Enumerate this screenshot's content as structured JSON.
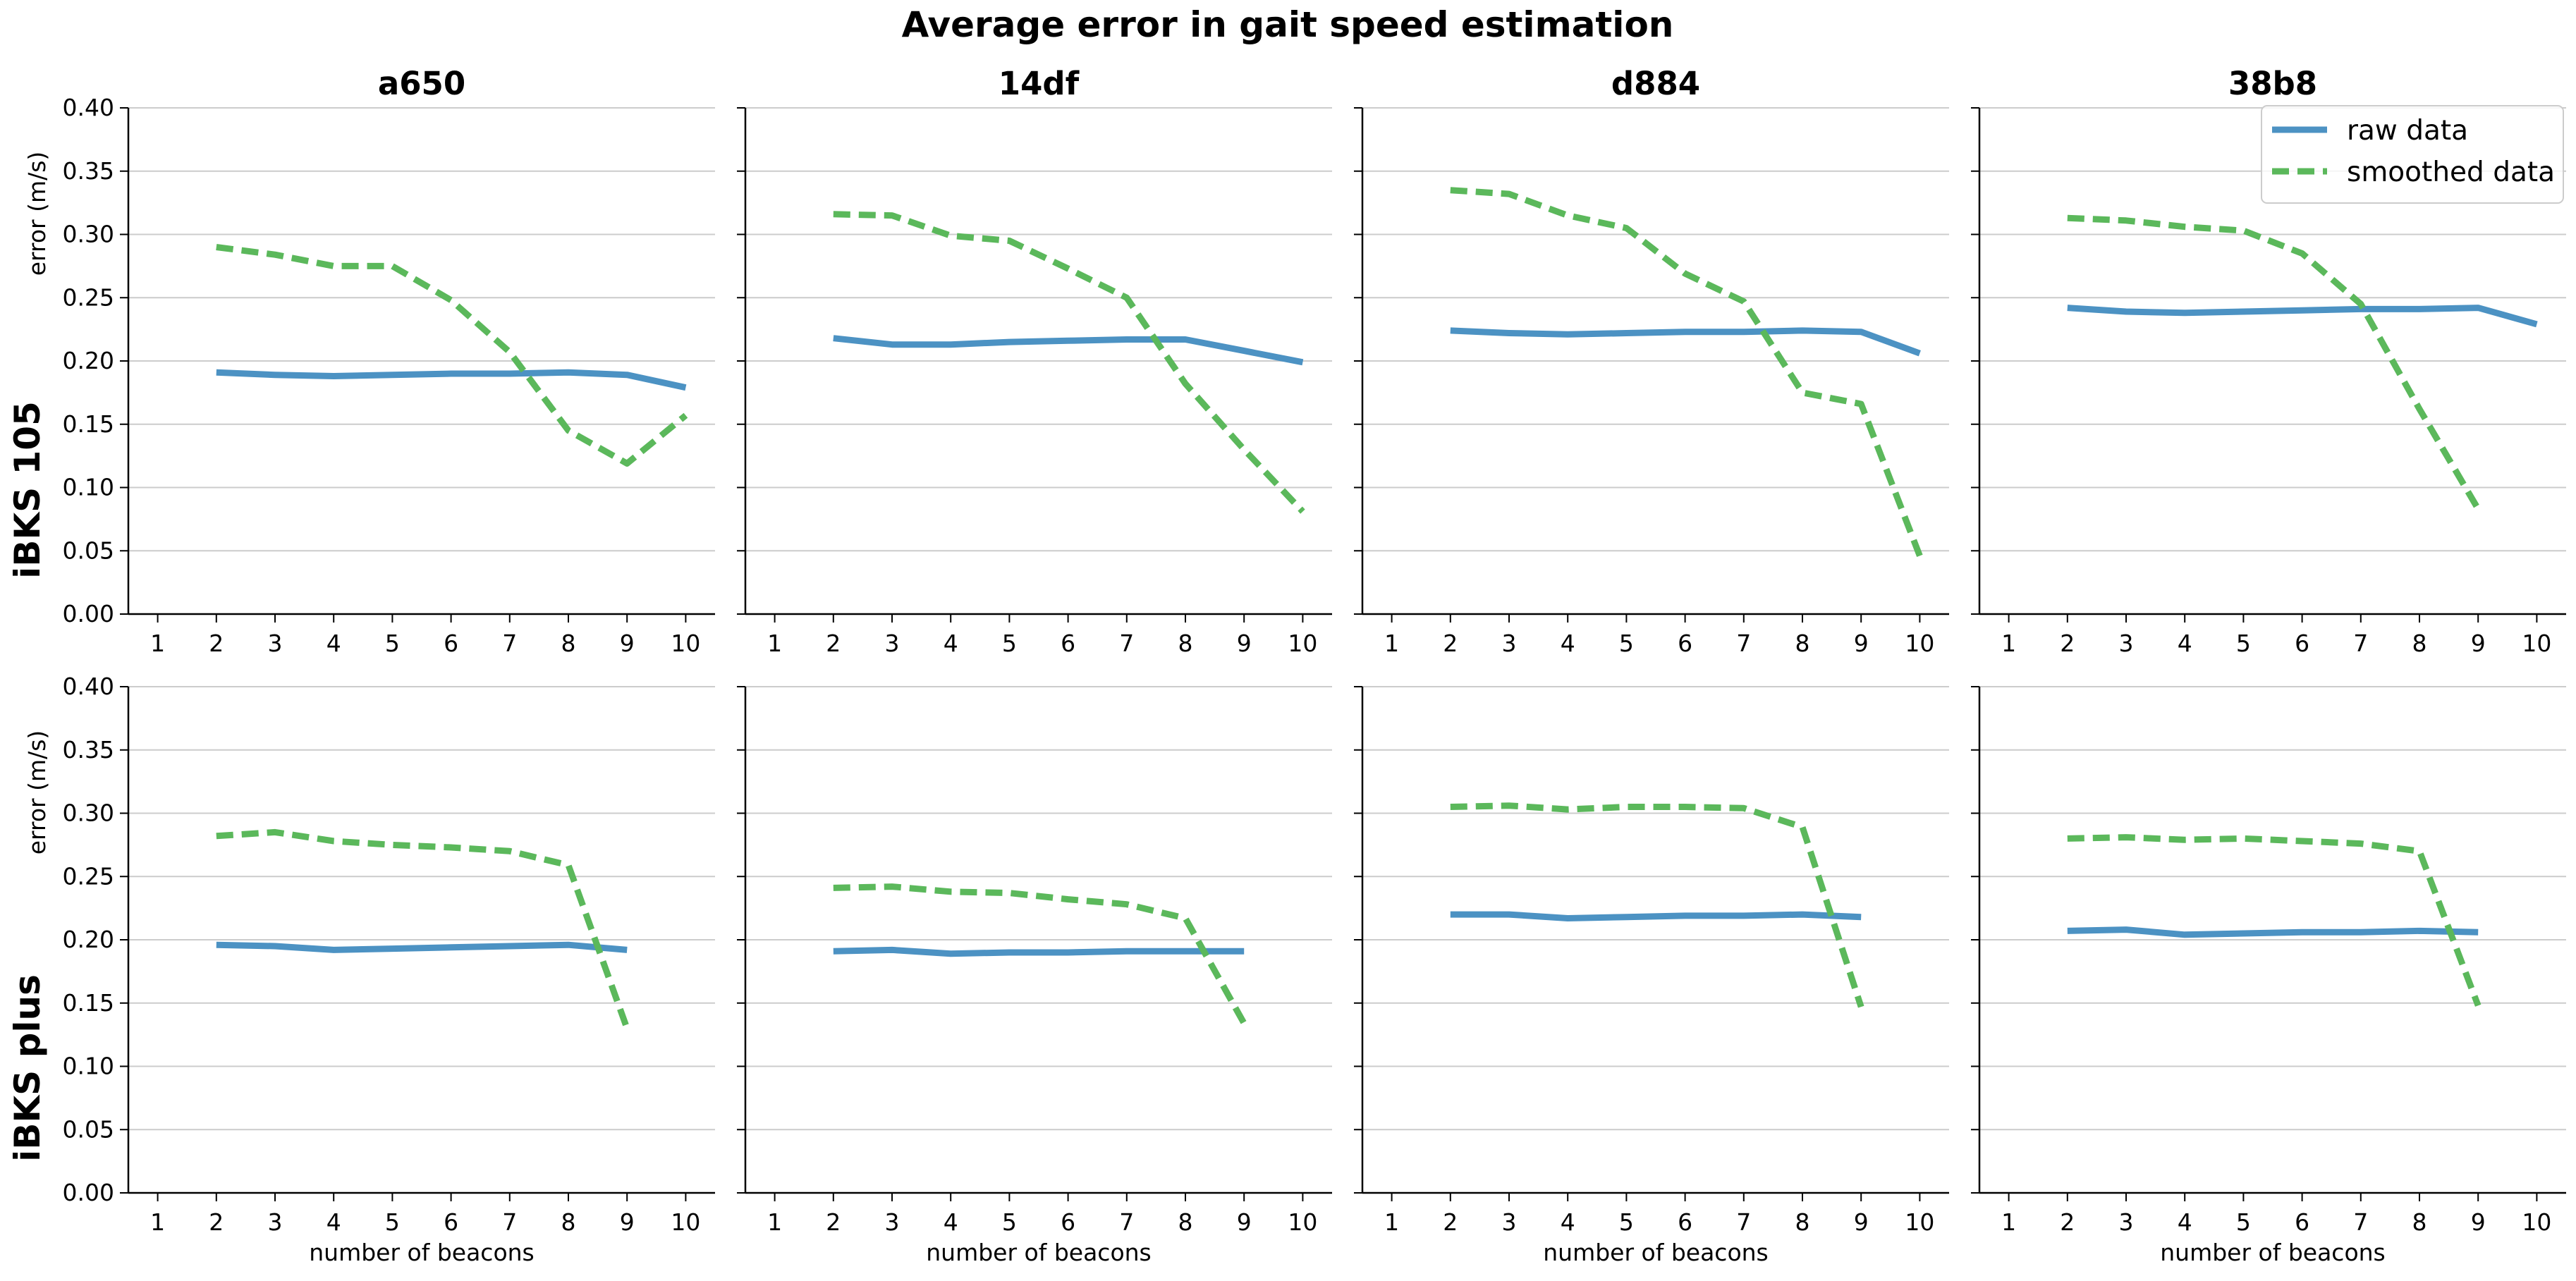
{
  "figure": {
    "title": "Average error in gait speed estimation"
  },
  "legend": {
    "position": "top-right",
    "entries": [
      {
        "name": "raw data",
        "color": "#4c92c3",
        "style": "solid"
      },
      {
        "name": "smoothed data",
        "color": "#5bb85b",
        "style": "dashed"
      }
    ]
  },
  "chart_data": [
    {
      "type": "line",
      "row": "iBKS 105",
      "title": "a650",
      "xlabel": "",
      "ylabel": "error (m/s)",
      "ylim": [
        0,
        0.4
      ],
      "grid": "horizontal",
      "x": [
        1,
        2,
        3,
        4,
        5,
        6,
        7,
        8,
        9,
        10
      ],
      "xticks": [
        "1",
        "2",
        "3",
        "4",
        "5",
        "6",
        "7",
        "8",
        "9",
        "10"
      ],
      "yticks": [
        "0.00",
        "0.05",
        "0.10",
        "0.15",
        "0.20",
        "0.25",
        "0.30",
        "0.35",
        "0.40"
      ],
      "series": [
        {
          "name": "raw data",
          "x": [
            2,
            3,
            4,
            5,
            6,
            7,
            8,
            9,
            10
          ],
          "values": [
            0.191,
            0.189,
            0.188,
            0.189,
            0.19,
            0.19,
            0.191,
            0.189,
            0.179
          ]
        },
        {
          "name": "smoothed data",
          "x": [
            2,
            3,
            4,
            5,
            6,
            7,
            8,
            9,
            10
          ],
          "values": [
            0.29,
            0.284,
            0.275,
            0.275,
            0.248,
            0.207,
            0.145,
            0.119,
            0.157
          ]
        }
      ]
    },
    {
      "type": "line",
      "row": "iBKS 105",
      "title": "14df",
      "xlabel": "",
      "ylabel": "",
      "ylim": [
        0,
        0.4
      ],
      "grid": "horizontal",
      "x": [
        1,
        2,
        3,
        4,
        5,
        6,
        7,
        8,
        9,
        10
      ],
      "xticks": [
        "1",
        "2",
        "3",
        "4",
        "5",
        "6",
        "7",
        "8",
        "9",
        "10"
      ],
      "yticks": [],
      "series": [
        {
          "name": "raw data",
          "x": [
            2,
            3,
            4,
            5,
            6,
            7,
            8,
            9,
            10
          ],
          "values": [
            0.218,
            0.213,
            0.213,
            0.215,
            0.216,
            0.217,
            0.217,
            0.208,
            0.199
          ]
        },
        {
          "name": "smoothed data",
          "x": [
            2,
            3,
            4,
            5,
            6,
            7,
            8,
            9,
            10
          ],
          "values": [
            0.316,
            0.315,
            0.299,
            0.295,
            0.273,
            0.25,
            0.182,
            0.13,
            0.081
          ]
        }
      ]
    },
    {
      "type": "line",
      "row": "iBKS 105",
      "title": "d884",
      "xlabel": "",
      "ylabel": "",
      "ylim": [
        0,
        0.4
      ],
      "grid": "horizontal",
      "x": [
        1,
        2,
        3,
        4,
        5,
        6,
        7,
        8,
        9,
        10
      ],
      "xticks": [
        "1",
        "2",
        "3",
        "4",
        "5",
        "6",
        "7",
        "8",
        "9",
        "10"
      ],
      "yticks": [],
      "series": [
        {
          "name": "raw data",
          "x": [
            2,
            3,
            4,
            5,
            6,
            7,
            8,
            9,
            10
          ],
          "values": [
            0.224,
            0.222,
            0.221,
            0.222,
            0.223,
            0.223,
            0.224,
            0.223,
            0.206
          ]
        },
        {
          "name": "smoothed data",
          "x": [
            2,
            3,
            4,
            5,
            6,
            7,
            8,
            9,
            10
          ],
          "values": [
            0.335,
            0.332,
            0.315,
            0.305,
            0.269,
            0.247,
            0.175,
            0.166,
            0.046
          ]
        }
      ]
    },
    {
      "type": "line",
      "row": "iBKS 105",
      "title": "38b8",
      "xlabel": "",
      "ylabel": "",
      "ylim": [
        0,
        0.4
      ],
      "grid": "horizontal",
      "x": [
        1,
        2,
        3,
        4,
        5,
        6,
        7,
        8,
        9,
        10
      ],
      "xticks": [
        "1",
        "2",
        "3",
        "4",
        "5",
        "6",
        "7",
        "8",
        "9",
        "10"
      ],
      "yticks": [],
      "series": [
        {
          "name": "raw data",
          "x": [
            2,
            3,
            4,
            5,
            6,
            7,
            8,
            9,
            10
          ],
          "values": [
            0.242,
            0.239,
            0.238,
            0.239,
            0.24,
            0.241,
            0.241,
            0.242,
            0.229
          ]
        },
        {
          "name": "smoothed data",
          "x": [
            2,
            3,
            4,
            5,
            6,
            7,
            8,
            9
          ],
          "values": [
            0.313,
            0.311,
            0.306,
            0.303,
            0.285,
            0.245,
            0.162,
            0.083
          ]
        }
      ]
    },
    {
      "type": "line",
      "row": "iBKS plus",
      "title": "",
      "xlabel": "number of beacons",
      "ylabel": "error (m/s)",
      "ylim": [
        0,
        0.4
      ],
      "grid": "horizontal",
      "x": [
        1,
        2,
        3,
        4,
        5,
        6,
        7,
        8,
        9,
        10
      ],
      "xticks": [
        "1",
        "2",
        "3",
        "4",
        "5",
        "6",
        "7",
        "8",
        "9",
        "10"
      ],
      "yticks": [
        "0.00",
        "0.05",
        "0.10",
        "0.15",
        "0.20",
        "0.25",
        "0.30",
        "0.35",
        "0.40"
      ],
      "series": [
        {
          "name": "raw data",
          "x": [
            2,
            3,
            4,
            5,
            6,
            7,
            8,
            9
          ],
          "values": [
            0.196,
            0.195,
            0.192,
            0.193,
            0.194,
            0.195,
            0.196,
            0.192
          ]
        },
        {
          "name": "smoothed data",
          "x": [
            2,
            3,
            4,
            5,
            6,
            7,
            8,
            9
          ],
          "values": [
            0.282,
            0.285,
            0.278,
            0.275,
            0.273,
            0.27,
            0.259,
            0.13
          ]
        }
      ]
    },
    {
      "type": "line",
      "row": "iBKS plus",
      "title": "",
      "xlabel": "number of beacons",
      "ylabel": "",
      "ylim": [
        0,
        0.4
      ],
      "grid": "horizontal",
      "x": [
        1,
        2,
        3,
        4,
        5,
        6,
        7,
        8,
        9,
        10
      ],
      "xticks": [
        "1",
        "2",
        "3",
        "4",
        "5",
        "6",
        "7",
        "8",
        "9",
        "10"
      ],
      "yticks": [],
      "series": [
        {
          "name": "raw data",
          "x": [
            2,
            3,
            4,
            5,
            6,
            7,
            8,
            9
          ],
          "values": [
            0.191,
            0.192,
            0.189,
            0.19,
            0.19,
            0.191,
            0.191,
            0.191
          ]
        },
        {
          "name": "smoothed data",
          "x": [
            2,
            3,
            4,
            5,
            6,
            7,
            8,
            9
          ],
          "values": [
            0.241,
            0.242,
            0.238,
            0.237,
            0.232,
            0.228,
            0.217,
            0.134
          ]
        }
      ]
    },
    {
      "type": "line",
      "row": "iBKS plus",
      "title": "",
      "xlabel": "number of beacons",
      "ylabel": "",
      "ylim": [
        0,
        0.4
      ],
      "grid": "horizontal",
      "x": [
        1,
        2,
        3,
        4,
        5,
        6,
        7,
        8,
        9,
        10
      ],
      "xticks": [
        "1",
        "2",
        "3",
        "4",
        "5",
        "6",
        "7",
        "8",
        "9",
        "10"
      ],
      "yticks": [],
      "series": [
        {
          "name": "raw data",
          "x": [
            2,
            3,
            4,
            5,
            6,
            7,
            8,
            9
          ],
          "values": [
            0.22,
            0.22,
            0.217,
            0.218,
            0.219,
            0.219,
            0.22,
            0.218
          ]
        },
        {
          "name": "smoothed data",
          "x": [
            2,
            3,
            4,
            5,
            6,
            7,
            8,
            9
          ],
          "values": [
            0.305,
            0.306,
            0.303,
            0.305,
            0.305,
            0.304,
            0.289,
            0.147
          ]
        }
      ]
    },
    {
      "type": "line",
      "row": "iBKS plus",
      "title": "",
      "xlabel": "number of beacons",
      "ylabel": "",
      "ylim": [
        0,
        0.4
      ],
      "grid": "horizontal",
      "x": [
        1,
        2,
        3,
        4,
        5,
        6,
        7,
        8,
        9,
        10
      ],
      "xticks": [
        "1",
        "2",
        "3",
        "4",
        "5",
        "6",
        "7",
        "8",
        "9",
        "10"
      ],
      "yticks": [],
      "series": [
        {
          "name": "raw data",
          "x": [
            2,
            3,
            4,
            5,
            6,
            7,
            8,
            9
          ],
          "values": [
            0.207,
            0.208,
            0.204,
            0.205,
            0.206,
            0.206,
            0.207,
            0.206
          ]
        },
        {
          "name": "smoothed data",
          "x": [
            2,
            3,
            4,
            5,
            6,
            7,
            8,
            9
          ],
          "values": [
            0.28,
            0.281,
            0.279,
            0.28,
            0.278,
            0.276,
            0.27,
            0.148
          ]
        }
      ]
    }
  ]
}
